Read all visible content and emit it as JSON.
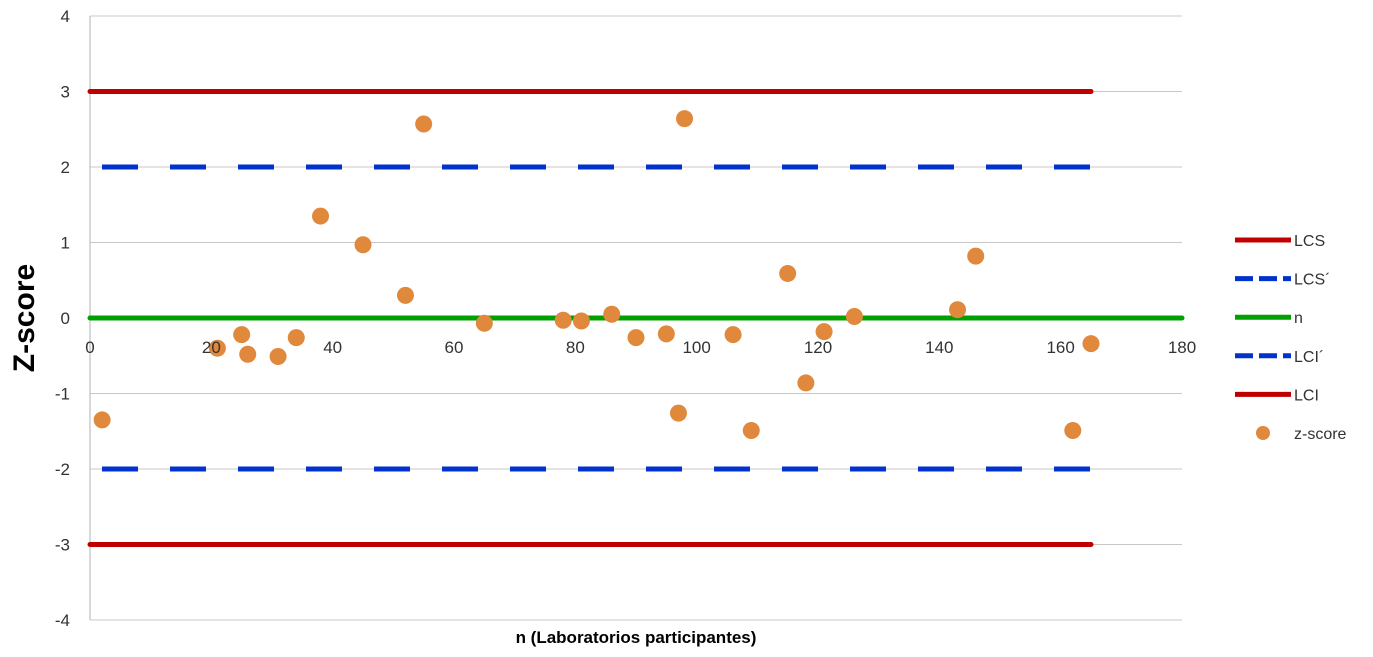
{
  "chart_data": {
    "type": "scatter",
    "xlabel": "n (Laboratorios participantes)",
    "ylabel": "Z-score",
    "xlim": [
      0,
      180
    ],
    "ylim": [
      -4,
      4
    ],
    "x_ticks": [
      0,
      20,
      40,
      60,
      80,
      100,
      120,
      140,
      160,
      180
    ],
    "y_ticks": [
      4,
      3,
      2,
      1,
      0,
      -1,
      -2,
      -3,
      -4
    ],
    "grid": "horizontal",
    "legend_position": "right",
    "series": [
      {
        "name": "LCS",
        "kind": "line",
        "color": "#c00000",
        "dash": "solid",
        "x": [
          0,
          165
        ],
        "y": [
          3,
          3
        ]
      },
      {
        "name": "LCS´",
        "kind": "line",
        "color": "#0033cc",
        "dash": "dashed",
        "x": [
          0,
          165
        ],
        "y": [
          2,
          2
        ]
      },
      {
        "name": "n",
        "kind": "line",
        "color": "#00a000",
        "dash": "solid",
        "x": [
          0,
          180
        ],
        "y": [
          0,
          0
        ]
      },
      {
        "name": "LCI´",
        "kind": "line",
        "color": "#0033cc",
        "dash": "dashed",
        "x": [
          0,
          165
        ],
        "y": [
          -2,
          -2
        ]
      },
      {
        "name": "LCI",
        "kind": "line",
        "color": "#c00000",
        "dash": "solid",
        "x": [
          0,
          165
        ],
        "y": [
          -3,
          -3
        ]
      },
      {
        "name": "z-score",
        "kind": "scatter",
        "color": "#e0883c",
        "x": [
          2,
          21,
          25,
          26,
          31,
          34,
          38,
          45,
          52,
          55,
          65,
          78,
          81,
          86,
          90,
          95,
          97,
          98,
          106,
          109,
          115,
          118,
          121,
          126,
          143,
          146,
          162,
          165
        ],
        "y": [
          -1.35,
          -0.4,
          -0.22,
          -0.48,
          -0.51,
          -0.26,
          1.35,
          0.97,
          0.3,
          2.57,
          -0.07,
          -0.03,
          -0.04,
          0.05,
          -0.26,
          -0.21,
          -1.26,
          2.64,
          -0.22,
          -1.49,
          0.59,
          -0.86,
          -0.18,
          0.02,
          0.11,
          0.82,
          -1.49,
          -0.34
        ]
      }
    ]
  }
}
